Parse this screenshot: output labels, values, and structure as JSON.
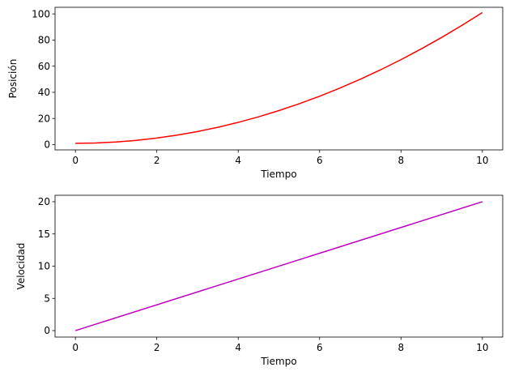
{
  "chart_data": [
    {
      "type": "line",
      "xlabel": "Tiempo",
      "ylabel": "Posición",
      "xlim": [
        -0.5,
        10.5
      ],
      "ylim": [
        -4.05,
        105.05
      ],
      "xticks": [
        0,
        2,
        4,
        6,
        8,
        10
      ],
      "yticks": [
        0,
        20,
        40,
        60,
        80,
        100
      ],
      "xtick_labels": [
        "0",
        "2",
        "4",
        "6",
        "8",
        "10"
      ],
      "ytick_labels": [
        "0",
        "20",
        "40",
        "60",
        "80",
        "100"
      ],
      "grid": false,
      "series": [
        {
          "color": "#ff0000",
          "x": [
            0,
            0.5,
            1,
            1.5,
            2,
            2.5,
            3,
            3.5,
            4,
            4.5,
            5,
            5.5,
            6,
            6.5,
            7,
            7.5,
            8,
            8.5,
            9,
            9.5,
            10
          ],
          "y": [
            1,
            1.25,
            2,
            3.25,
            5,
            7.25,
            10,
            13.25,
            17,
            21.25,
            26,
            31.25,
            37,
            43.25,
            50,
            57.25,
            65,
            73.25,
            82,
            91.25,
            101
          ]
        }
      ]
    },
    {
      "type": "line",
      "xlabel": "Tiempo",
      "ylabel": "Velocidad",
      "xlim": [
        -0.5,
        10.5
      ],
      "ylim": [
        -1,
        21
      ],
      "xticks": [
        0,
        2,
        4,
        6,
        8,
        10
      ],
      "yticks": [
        0,
        5,
        10,
        15,
        20
      ],
      "xtick_labels": [
        "0",
        "2",
        "4",
        "6",
        "8",
        "10"
      ],
      "ytick_labels": [
        "0",
        "5",
        "10",
        "15",
        "20"
      ],
      "grid": false,
      "series": [
        {
          "color": "#bf00bf",
          "x": [
            0,
            10
          ],
          "y": [
            0,
            20
          ]
        }
      ]
    }
  ]
}
